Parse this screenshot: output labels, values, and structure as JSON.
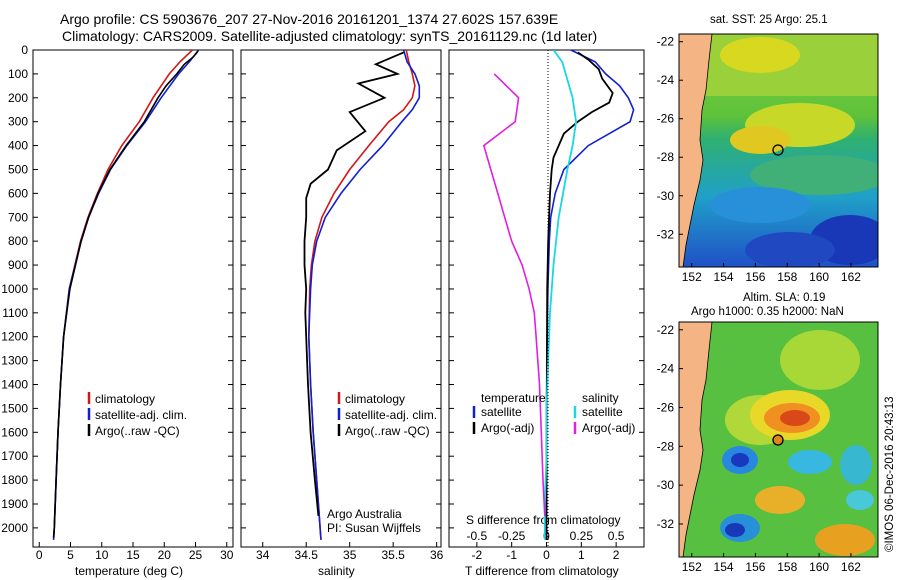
{
  "header": {
    "line1": "Argo profile: CS 5903676_207 27-Nov-2016 20161201_1374 27.602S 157.639E",
    "line2": "Climatology: CARS2009. Satellite-adjusted climatology: synTS_20161129.nc (1d later)"
  },
  "colors": {
    "clim": "#d01818",
    "sat": "#1020d0",
    "argo": "#000000",
    "sal_sat": "#18d8e0",
    "sal_argo": "#e020e0"
  },
  "chart_data": [
    {
      "type": "line",
      "id": "temperature",
      "xlabel": "temperature (deg C)",
      "ylabel": "depth",
      "xlim": [
        -1,
        31
      ],
      "ylim": [
        2080,
        0
      ],
      "xticks": [
        "0",
        "5",
        "10",
        "15",
        "20",
        "25",
        "30"
      ],
      "yticks": [
        "0",
        "100",
        "200",
        "300",
        "400",
        "500",
        "600",
        "700",
        "800",
        "900",
        "1000",
        "1100",
        "1200",
        "1300",
        "1400",
        "1500",
        "1600",
        "1700",
        "1800",
        "1900",
        "2000"
      ],
      "legend": [
        "climatology",
        "satellite-adj. clim.",
        "Argo(..raw -QC)"
      ],
      "series": [
        {
          "name": "climatology",
          "depth": [
            0,
            50,
            100,
            200,
            300,
            400,
            500,
            600,
            700,
            800,
            1000,
            1200,
            1400,
            1600,
            1800,
            2000,
            2050
          ],
          "values": [
            24.5,
            22.5,
            20.8,
            18.2,
            16.0,
            13.2,
            11.0,
            9.3,
            7.8,
            6.6,
            4.8,
            3.9,
            3.4,
            3.0,
            2.7,
            2.4,
            2.3
          ]
        },
        {
          "name": "satellite-adj. clim.",
          "depth": [
            0,
            50,
            100,
            200,
            300,
            400,
            500,
            600,
            700,
            800,
            1000,
            1200,
            1400,
            1600,
            1800,
            2000,
            2050
          ],
          "values": [
            25.5,
            24.0,
            22.3,
            19.5,
            17.0,
            14.0,
            11.4,
            9.5,
            7.9,
            6.7,
            4.8,
            3.9,
            3.4,
            3.0,
            2.7,
            2.4,
            2.3
          ]
        },
        {
          "name": "Argo(..raw -QC)",
          "depth": [
            5,
            30,
            60,
            100,
            150,
            200,
            300,
            400,
            500,
            600,
            700,
            800,
            1000,
            1200,
            1400,
            1600,
            1800,
            2000,
            2040
          ],
          "values": [
            25.4,
            24.6,
            23.2,
            22.0,
            20.3,
            19.0,
            16.8,
            13.9,
            11.3,
            9.4,
            7.9,
            6.7,
            4.9,
            3.9,
            3.4,
            3.0,
            2.7,
            2.4,
            2.3
          ]
        }
      ]
    },
    {
      "type": "line",
      "id": "salinity",
      "xlabel": "salinity",
      "xlim": [
        33.75,
        36.05
      ],
      "ylim": [
        2080,
        0
      ],
      "xticks": [
        "34",
        "34.5",
        "35",
        "35.5",
        "36"
      ],
      "legend": [
        "climatology",
        "satellite-adj. clim.",
        "Argo(..raw -QC)"
      ],
      "annotation": [
        "Argo Australia",
        "PI: Susan Wijffels"
      ],
      "series": [
        {
          "name": "climatology",
          "depth": [
            0,
            50,
            100,
            150,
            200,
            250,
            300,
            400,
            500,
            600,
            700,
            800,
            900,
            1000,
            1200,
            1400,
            1600,
            1800,
            2000,
            2050
          ],
          "values": [
            35.65,
            35.68,
            35.72,
            35.75,
            35.72,
            35.62,
            35.45,
            35.22,
            35.0,
            34.82,
            34.68,
            34.6,
            34.56,
            34.54,
            34.53,
            34.55,
            34.58,
            34.62,
            34.66,
            34.67
          ]
        },
        {
          "name": "satellite-adj. clim.",
          "depth": [
            0,
            50,
            100,
            150,
            200,
            250,
            300,
            400,
            500,
            600,
            700,
            800,
            900,
            1000,
            1200,
            1400,
            1600,
            1800,
            2000,
            2050
          ],
          "values": [
            35.62,
            35.66,
            35.75,
            35.8,
            35.8,
            35.72,
            35.6,
            35.38,
            35.12,
            34.9,
            34.72,
            34.62,
            34.57,
            34.55,
            34.53,
            34.55,
            34.58,
            34.62,
            34.66,
            34.67
          ]
        },
        {
          "name": "Argo(..raw -QC)",
          "depth": [
            10,
            60,
            100,
            140,
            200,
            260,
            340,
            420,
            500,
            560,
            620,
            700,
            800,
            900,
            1000,
            1100,
            1200,
            1400,
            1600,
            1800,
            1950
          ],
          "values": [
            35.62,
            35.3,
            35.55,
            35.1,
            35.4,
            35.0,
            35.18,
            34.85,
            34.75,
            34.55,
            34.5,
            34.5,
            34.48,
            34.48,
            34.5,
            34.49,
            34.5,
            34.52,
            34.55,
            34.6,
            34.64
          ]
        }
      ]
    },
    {
      "type": "line",
      "id": "difference",
      "xlabel": "T difference from climatology",
      "xlabel_top": "S difference from climatology",
      "xlim_T": [
        -2.8,
        2.8
      ],
      "xticks_T": [
        "-2",
        "-1",
        "0",
        "1",
        "2"
      ],
      "xticks_S": [
        "-0.5",
        "-0.25",
        "0",
        "0.25",
        "0.5"
      ],
      "legend_titles": [
        "temperature",
        "salinity"
      ],
      "legend": [
        "satellite",
        "Argo(-adj)",
        "satellite",
        "Argo(-adj)"
      ],
      "series": [
        {
          "name": "temperature satellite",
          "depth": [
            0,
            50,
            100,
            150,
            200,
            250,
            300,
            400,
            500,
            600,
            700,
            800,
            1000,
            1200,
            1400,
            1600,
            1800,
            2000,
            2050
          ],
          "values": [
            0.7,
            1.4,
            1.7,
            2.1,
            2.35,
            2.5,
            2.4,
            1.2,
            0.5,
            0.25,
            0.12,
            0.08,
            0.04,
            0.02,
            0.01,
            0.0,
            0.0,
            0.0,
            0.0
          ]
        },
        {
          "name": "temperature Argo(-adj)",
          "depth": [
            10,
            40,
            80,
            120,
            180,
            220,
            260,
            300,
            350,
            400,
            450,
            500,
            600,
            800,
            1000,
            1400,
            1800,
            2050
          ],
          "values": [
            0.9,
            1.2,
            1.5,
            1.6,
            1.9,
            1.8,
            1.3,
            0.9,
            0.5,
            0.35,
            0.2,
            0.15,
            0.1,
            0.05,
            0.02,
            0.01,
            0.0,
            0.0
          ]
        },
        {
          "name": "salinity satellite",
          "depth": [
            0,
            50,
            100,
            200,
            300,
            400,
            500,
            700,
            900,
            1100,
            1300,
            1500,
            1700,
            1900,
            2050
          ],
          "values": [
            0.2,
            0.45,
            0.55,
            0.75,
            0.85,
            0.75,
            0.6,
            0.35,
            0.2,
            0.1,
            0.05,
            0.0,
            0.0,
            -0.05,
            -0.05
          ]
        },
        {
          "name": "salinity Argo(-adj)",
          "depth": [
            100,
            200,
            300,
            400,
            500,
            600,
            700,
            800,
            900,
            1000,
            1100,
            1200,
            1400,
            1600,
            1800,
            1950
          ],
          "values": [
            -1.5,
            -0.8,
            -0.9,
            -1.8,
            -1.6,
            -1.4,
            -1.2,
            -1.0,
            -0.7,
            -0.5,
            -0.35,
            -0.3,
            -0.2,
            -0.15,
            -0.1,
            -0.05
          ]
        }
      ]
    },
    {
      "type": "heatmap",
      "id": "sst-map",
      "title": "sat. SST: 25 Argo: 25.1",
      "xticks": [
        "152",
        "154",
        "156",
        "158",
        "160",
        "162"
      ],
      "yticks": [
        "-22",
        "-24",
        "-26",
        "-28",
        "-30",
        "-32"
      ],
      "marker": {
        "lon": 157.6,
        "lat": -27.6
      }
    },
    {
      "type": "heatmap",
      "id": "sla-map",
      "title": "Altim. SLA: 0.19",
      "subtitle": "Argo h1000: 0.35 h2000: NaN",
      "xticks": [
        "152",
        "154",
        "156",
        "158",
        "160",
        "162"
      ],
      "yticks": [
        "-22",
        "-24",
        "-26",
        "-28",
        "-30",
        "-32"
      ],
      "marker": {
        "lon": 157.6,
        "lat": -27.6
      }
    }
  ],
  "footer": {
    "credit": "©IMOS 06-Dec-2016 20:43:13"
  }
}
